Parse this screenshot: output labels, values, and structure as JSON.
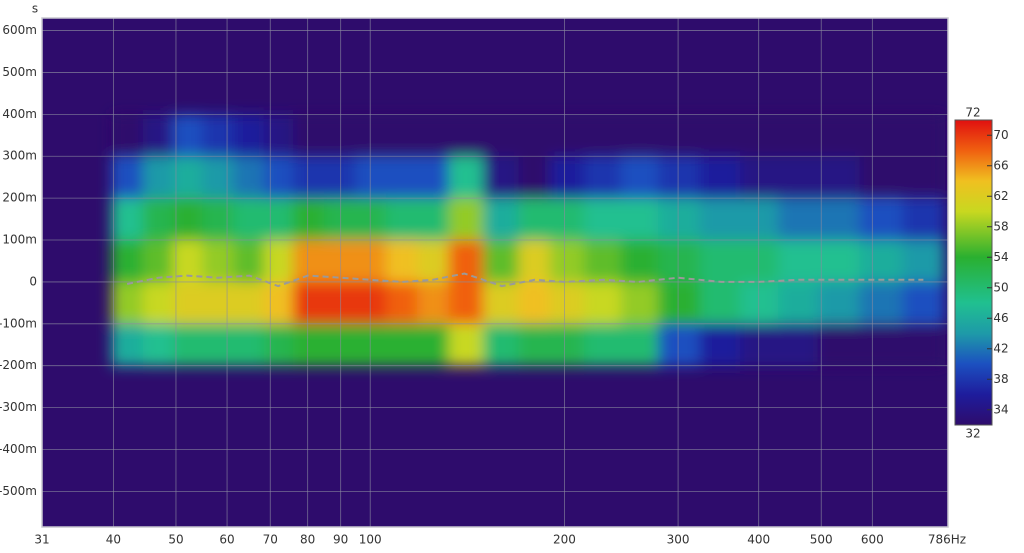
{
  "chart_data": {
    "type": "heatmap",
    "y_label": "s",
    "x": [
      42,
      47,
      52,
      58,
      65,
      72,
      80,
      90,
      100,
      112,
      125,
      140,
      160,
      180,
      200,
      230,
      260,
      300,
      350,
      400,
      460,
      530,
      620,
      720
    ],
    "y": [
      0.35,
      0.25,
      0.15,
      0.05,
      -0.05,
      -0.15
    ],
    "values": [
      [
        32,
        34,
        40,
        38,
        36,
        34,
        32,
        32,
        32,
        32,
        32,
        32,
        32,
        32,
        32,
        32,
        32,
        32,
        32,
        32,
        32,
        32,
        32,
        32
      ],
      [
        40,
        44,
        46,
        44,
        42,
        40,
        38,
        38,
        40,
        40,
        40,
        48,
        34,
        32,
        36,
        38,
        40,
        38,
        36,
        34,
        34,
        34,
        32,
        32
      ],
      [
        48,
        52,
        54,
        52,
        50,
        50,
        54,
        52,
        52,
        50,
        50,
        58,
        46,
        50,
        50,
        48,
        48,
        46,
        44,
        44,
        42,
        42,
        40,
        38
      ],
      [
        54,
        56,
        60,
        58,
        56,
        60,
        66,
        66,
        66,
        64,
        62,
        68,
        56,
        62,
        58,
        56,
        54,
        52,
        50,
        50,
        48,
        48,
        46,
        44
      ],
      [
        58,
        60,
        62,
        62,
        62,
        64,
        70,
        70,
        70,
        68,
        66,
        68,
        62,
        64,
        62,
        60,
        58,
        54,
        50,
        48,
        46,
        44,
        42,
        40
      ],
      [
        46,
        48,
        50,
        50,
        50,
        52,
        54,
        54,
        54,
        54,
        54,
        60,
        50,
        52,
        52,
        50,
        50,
        40,
        36,
        34,
        34,
        32,
        32,
        32
      ]
    ],
    "peak_line": {
      "color": "#9a9a9a",
      "values": [
        -0.005,
        0.01,
        0.015,
        0.01,
        0.015,
        -0.01,
        0.015,
        0.01,
        0.005,
        0.0,
        0.005,
        0.02,
        -0.01,
        0.005,
        0.0,
        0.005,
        0.0,
        0.01,
        0.0,
        0.0,
        0.005,
        0.005,
        0.005,
        0.005
      ]
    },
    "xscale": "log",
    "xlim": [
      31,
      786
    ],
    "xticks": [
      31,
      40,
      50,
      60,
      70,
      80,
      90,
      100,
      200,
      300,
      400,
      500,
      600,
      {
        "value": 786,
        "label": "786Hz"
      }
    ],
    "ylim": [
      -0.585,
      0.63
    ],
    "yticks": [
      {
        "value": 0.6,
        "label": "600m"
      },
      {
        "value": 0.5,
        "label": "500m"
      },
      {
        "value": 0.4,
        "label": "400m"
      },
      {
        "value": 0.3,
        "label": "300m"
      },
      {
        "value": 0.2,
        "label": "200m"
      },
      {
        "value": 0.1,
        "label": "100m"
      },
      0,
      {
        "value": -0.1,
        "label": "-100m"
      },
      {
        "value": -0.2,
        "label": "-200m"
      },
      {
        "value": -0.3,
        "label": "-300m"
      },
      {
        "value": -0.4,
        "label": "-400m"
      },
      {
        "value": -0.5,
        "label": "-500m"
      }
    ],
    "grid": true,
    "clim": [
      32,
      72
    ],
    "cticks": [
      34,
      38,
      42,
      46,
      50,
      54,
      58,
      62,
      66,
      70
    ],
    "colormap": [
      [
        32,
        "#2e0c6c"
      ],
      [
        36,
        "#1e1c9c"
      ],
      [
        40,
        "#1c50c0"
      ],
      [
        44,
        "#1e9aa8"
      ],
      [
        48,
        "#20c090"
      ],
      [
        54,
        "#2ab030"
      ],
      [
        60,
        "#c8d820"
      ],
      [
        64,
        "#f0c020"
      ],
      [
        68,
        "#f06010"
      ],
      [
        72,
        "#e01010"
      ]
    ]
  }
}
